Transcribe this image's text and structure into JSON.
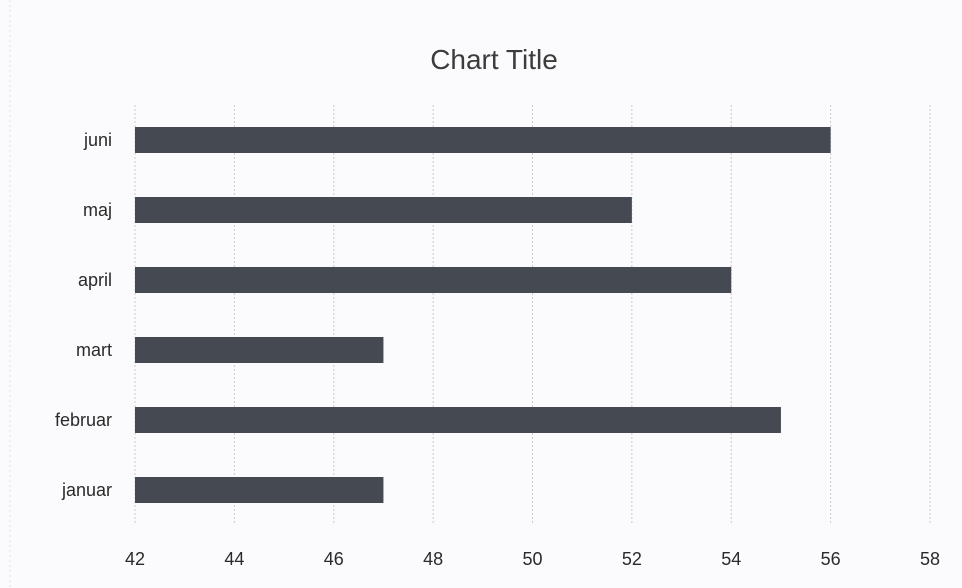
{
  "chart_data": {
    "type": "bar",
    "orientation": "horizontal",
    "title": "Chart Title",
    "xlabel": "",
    "ylabel": "",
    "categories": [
      "januar",
      "februar",
      "mart",
      "april",
      "maj",
      "juni"
    ],
    "values": [
      47,
      55,
      47,
      54,
      52,
      56
    ],
    "xlim": [
      42,
      58
    ],
    "x_ticks": [
      42,
      44,
      46,
      48,
      50,
      52,
      54,
      56,
      58
    ],
    "grid": "vertical",
    "legend": "none",
    "bar_color": "#454a52"
  }
}
